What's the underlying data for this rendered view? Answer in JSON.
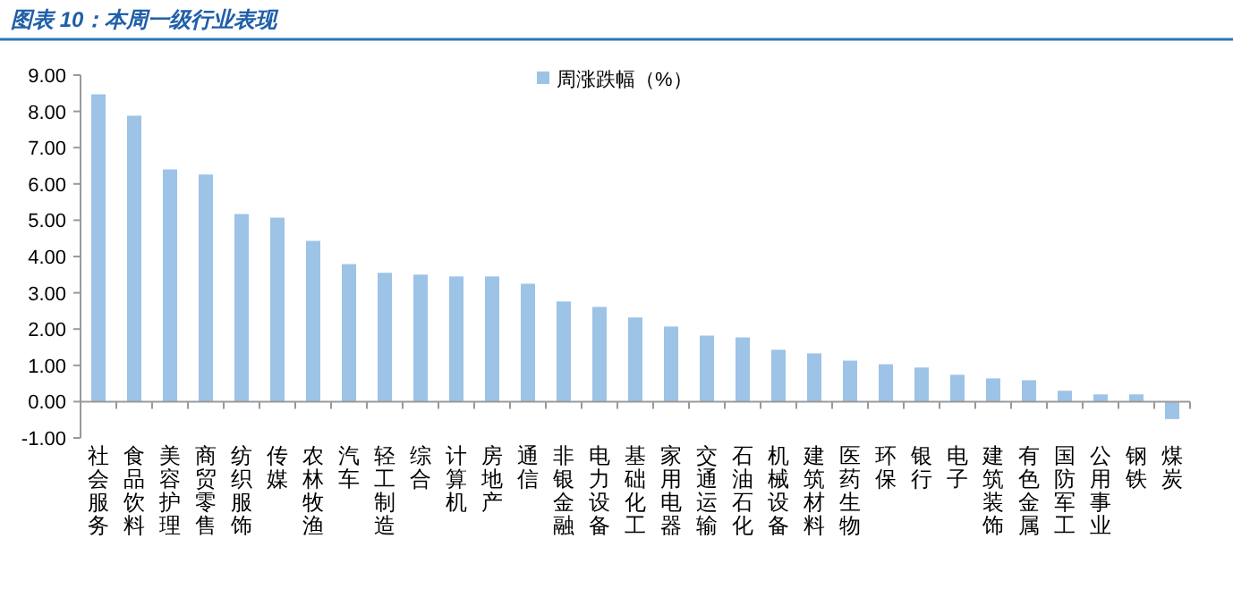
{
  "chart_data": {
    "type": "bar",
    "title": "图表 10：本周一级行业表现",
    "categories": [
      "社会服务",
      "食品饮料",
      "美容护理",
      "商贸零售",
      "纺织服饰",
      "传媒",
      "农林牧渔",
      "汽车",
      "轻工制造",
      "综合",
      "计算机",
      "房地产",
      "通信",
      "非银金融",
      "电力设备",
      "基础化工",
      "家用电器",
      "交通运输",
      "石油石化",
      "机械设备",
      "建筑材料",
      "医药生物",
      "环保",
      "银行",
      "电子",
      "建筑装饰",
      "有色金属",
      "国防军工",
      "公用事业",
      "钢铁",
      "煤炭"
    ],
    "series": [
      {
        "name": "周涨跌幅（%）",
        "color": "#9dc3e6",
        "values": [
          8.47,
          7.88,
          6.4,
          6.26,
          5.17,
          5.07,
          4.43,
          3.79,
          3.55,
          3.5,
          3.45,
          3.45,
          3.25,
          2.76,
          2.61,
          2.32,
          2.07,
          1.82,
          1.77,
          1.43,
          1.33,
          1.13,
          1.03,
          0.94,
          0.74,
          0.64,
          0.59,
          0.3,
          0.2,
          0.2,
          -0.48
        ]
      }
    ],
    "ylim": [
      -1,
      9
    ],
    "yticks": [
      {
        "value": -1,
        "label": "-1.00"
      },
      {
        "value": 0,
        "label": "0.00"
      },
      {
        "value": 1,
        "label": "1.00"
      },
      {
        "value": 2,
        "label": "2.00"
      },
      {
        "value": 3,
        "label": "3.00"
      },
      {
        "value": 4,
        "label": "4.00"
      },
      {
        "value": 5,
        "label": "5.00"
      },
      {
        "value": 6,
        "label": "6.00"
      },
      {
        "value": 7,
        "label": "7.00"
      },
      {
        "value": 8,
        "label": "8.00"
      },
      {
        "value": 9,
        "label": "9.00"
      }
    ],
    "legend": "top",
    "grid": false
  }
}
